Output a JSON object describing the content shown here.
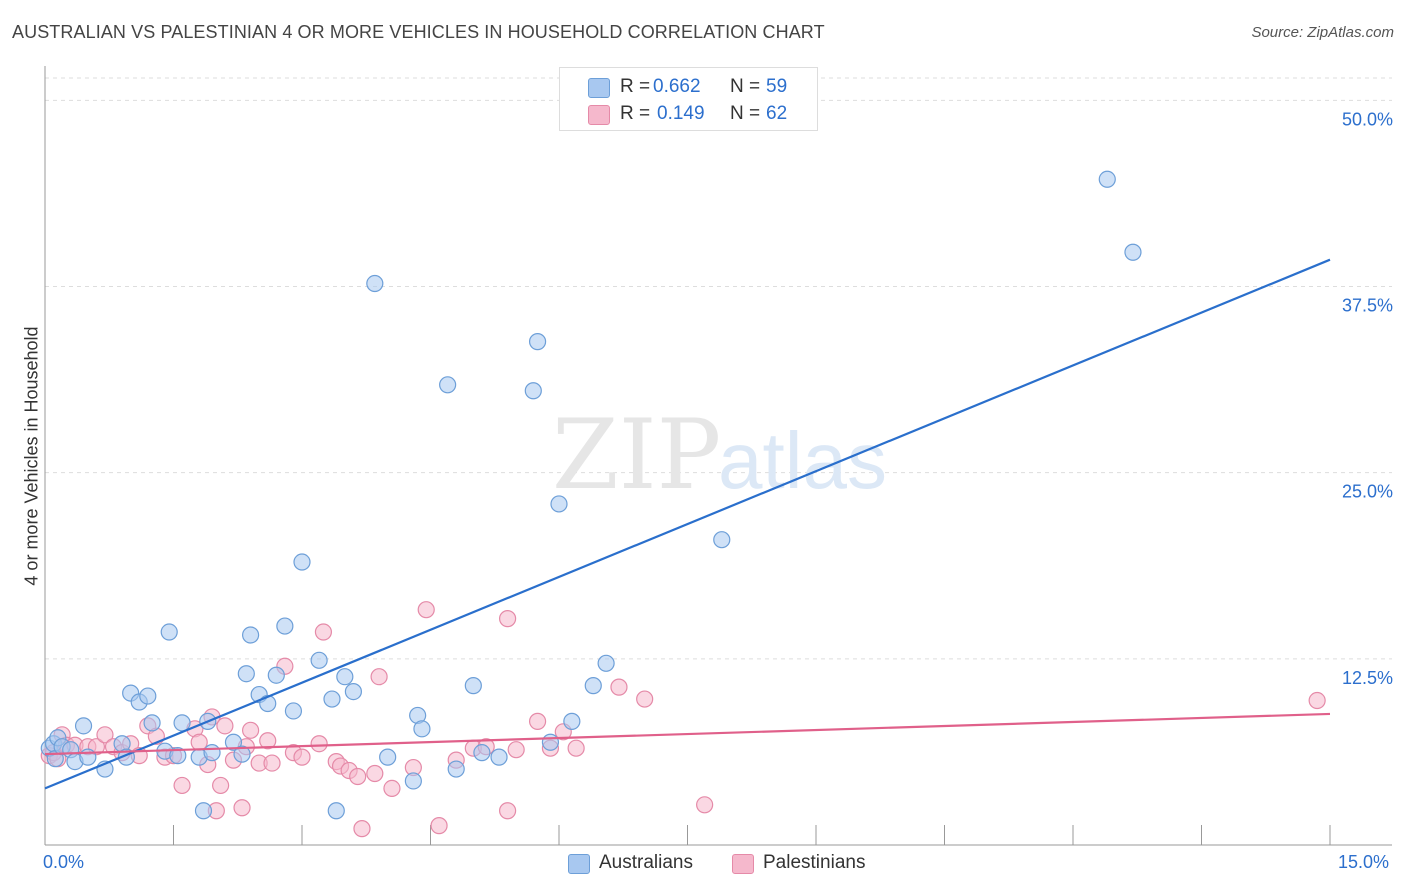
{
  "title": "AUSTRALIAN VS PALESTINIAN 4 OR MORE VEHICLES IN HOUSEHOLD CORRELATION CHART",
  "source": "Source: ZipAtlas.com",
  "watermark": {
    "zip": "ZIP",
    "atlas": "atlas"
  },
  "legend_top": [
    {
      "r_label": "R = ",
      "r_value": "0.662",
      "n_label": "N = ",
      "n_value": "59",
      "color": "#a8c8f0"
    },
    {
      "r_label": "R = ",
      "r_value": "0.149",
      "n_label": "N = ",
      "n_value": "62",
      "color": "#f5b8cc"
    }
  ],
  "legend_bottom": [
    {
      "label": "Australians",
      "color": "#a8c8f0"
    },
    {
      "label": "Palestinians",
      "color": "#f5b8cc"
    }
  ],
  "colors": {
    "blue_fill": "#a8c8f0",
    "blue_stroke": "#6d9fd8",
    "blue_line": "#2a6fcc",
    "pink_fill": "#f5b8cc",
    "pink_stroke": "#e58aa8",
    "pink_line": "#e0608a",
    "tick_label": "#2c6fcd",
    "grid": "#dddddd"
  },
  "chart_data": {
    "type": "scatter",
    "title": "AUSTRALIAN VS PALESTINIAN 4 OR MORE VEHICLES IN HOUSEHOLD CORRELATION CHART",
    "xlabel": "",
    "ylabel": "4 or more Vehicles in Household",
    "xlim": [
      0,
      15
    ],
    "ylim": [
      0,
      51.5
    ],
    "x_tick_labels": [
      "0.0%",
      "15.0%"
    ],
    "y_ticks": [
      12.5,
      25,
      37.5,
      50
    ],
    "y_tick_labels": [
      "12.5%",
      "25.0%",
      "37.5%",
      "50.0%"
    ],
    "grid": "horizontal dashed",
    "legend_position": "top-center",
    "series": [
      {
        "name": "Australians",
        "color": "#a8c8f0",
        "trend": {
          "x": [
            0,
            15
          ],
          "y": [
            3.8,
            39.3
          ]
        },
        "points": [
          [
            0.05,
            6.5
          ],
          [
            0.1,
            6.8
          ],
          [
            0.15,
            7.2
          ],
          [
            0.12,
            5.8
          ],
          [
            0.2,
            6.6
          ],
          [
            0.3,
            6.4
          ],
          [
            0.35,
            5.6
          ],
          [
            0.45,
            8.0
          ],
          [
            0.5,
            5.9
          ],
          [
            0.7,
            5.1
          ],
          [
            0.9,
            6.8
          ],
          [
            0.95,
            5.9
          ],
          [
            1.0,
            10.2
          ],
          [
            1.1,
            9.6
          ],
          [
            1.2,
            10.0
          ],
          [
            1.25,
            8.2
          ],
          [
            1.4,
            6.3
          ],
          [
            1.45,
            14.3
          ],
          [
            1.55,
            6.0
          ],
          [
            1.6,
            8.2
          ],
          [
            1.8,
            5.9
          ],
          [
            1.85,
            2.3
          ],
          [
            1.9,
            8.3
          ],
          [
            1.95,
            6.2
          ],
          [
            2.2,
            6.9
          ],
          [
            2.3,
            6.1
          ],
          [
            2.35,
            11.5
          ],
          [
            2.4,
            14.1
          ],
          [
            2.5,
            10.1
          ],
          [
            2.6,
            9.5
          ],
          [
            2.7,
            11.4
          ],
          [
            2.8,
            14.7
          ],
          [
            2.9,
            9.0
          ],
          [
            3.0,
            19.0
          ],
          [
            3.2,
            12.4
          ],
          [
            3.35,
            9.8
          ],
          [
            3.4,
            2.3
          ],
          [
            3.5,
            11.3
          ],
          [
            3.6,
            10.3
          ],
          [
            3.85,
            37.7
          ],
          [
            4.0,
            5.9
          ],
          [
            4.3,
            4.3
          ],
          [
            4.35,
            8.7
          ],
          [
            4.4,
            7.8
          ],
          [
            4.7,
            30.9
          ],
          [
            4.8,
            5.1
          ],
          [
            5.0,
            10.7
          ],
          [
            5.1,
            6.2
          ],
          [
            5.3,
            5.9
          ],
          [
            5.7,
            30.5
          ],
          [
            5.75,
            33.8
          ],
          [
            5.9,
            6.9
          ],
          [
            6.0,
            22.9
          ],
          [
            6.15,
            8.3
          ],
          [
            6.4,
            10.7
          ],
          [
            6.55,
            12.2
          ],
          [
            7.9,
            20.5
          ],
          [
            12.4,
            44.7
          ],
          [
            12.7,
            39.8
          ]
        ]
      },
      {
        "name": "Palestinians",
        "color": "#f5b8cc",
        "trend": {
          "x": [
            0,
            15
          ],
          "y": [
            6.1,
            8.8
          ]
        },
        "points": [
          [
            0.05,
            6.0
          ],
          [
            0.1,
            6.2
          ],
          [
            0.15,
            5.8
          ],
          [
            0.2,
            7.4
          ],
          [
            0.25,
            6.7
          ],
          [
            0.35,
            6.7
          ],
          [
            0.5,
            6.6
          ],
          [
            0.6,
            6.6
          ],
          [
            0.7,
            7.4
          ],
          [
            0.8,
            6.6
          ],
          [
            0.9,
            6.2
          ],
          [
            1.0,
            6.8
          ],
          [
            1.1,
            6.0
          ],
          [
            1.2,
            8.0
          ],
          [
            1.3,
            7.3
          ],
          [
            1.4,
            5.9
          ],
          [
            1.5,
            6.0
          ],
          [
            1.6,
            4.0
          ],
          [
            1.75,
            7.8
          ],
          [
            1.8,
            6.9
          ],
          [
            1.9,
            5.4
          ],
          [
            1.95,
            8.6
          ],
          [
            2.0,
            2.3
          ],
          [
            2.05,
            4.0
          ],
          [
            2.1,
            8.0
          ],
          [
            2.2,
            5.7
          ],
          [
            2.3,
            2.5
          ],
          [
            2.35,
            6.6
          ],
          [
            2.4,
            7.7
          ],
          [
            2.5,
            5.5
          ],
          [
            2.6,
            7.0
          ],
          [
            2.65,
            5.5
          ],
          [
            2.8,
            12.0
          ],
          [
            2.9,
            6.2
          ],
          [
            3.0,
            5.9
          ],
          [
            3.2,
            6.8
          ],
          [
            3.25,
            14.3
          ],
          [
            3.4,
            5.6
          ],
          [
            3.45,
            5.3
          ],
          [
            3.55,
            5.0
          ],
          [
            3.65,
            4.6
          ],
          [
            3.7,
            1.1
          ],
          [
            3.85,
            4.8
          ],
          [
            3.9,
            11.3
          ],
          [
            4.05,
            3.8
          ],
          [
            4.3,
            5.2
          ],
          [
            4.45,
            15.8
          ],
          [
            4.6,
            1.3
          ],
          [
            4.8,
            5.7
          ],
          [
            5.0,
            6.5
          ],
          [
            5.15,
            6.6
          ],
          [
            5.4,
            2.3
          ],
          [
            5.4,
            15.2
          ],
          [
            5.5,
            6.4
          ],
          [
            5.75,
            8.3
          ],
          [
            5.9,
            6.5
          ],
          [
            6.05,
            7.6
          ],
          [
            6.2,
            6.5
          ],
          [
            6.7,
            10.6
          ],
          [
            7.0,
            9.8
          ],
          [
            7.7,
            2.7
          ],
          [
            14.85,
            9.7
          ]
        ]
      }
    ]
  }
}
